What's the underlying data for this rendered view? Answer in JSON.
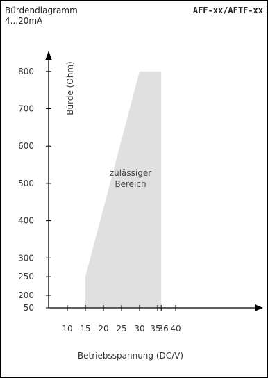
{
  "header": {
    "title": "Bürdendiagramm",
    "range": "4...20mA",
    "model": "AFF-xx/AFTF-xx"
  },
  "chart_data": {
    "type": "area",
    "ylabel": "Bürde (Ohm)",
    "xlabel": "Betriebsspannung (DC/V)",
    "x_ticks": [
      10,
      15,
      20,
      25,
      30,
      35,
      36,
      40
    ],
    "y_ticks": [
      50,
      200,
      250,
      300,
      400,
      500,
      600,
      700,
      800
    ],
    "region_label": [
      "zulässiger",
      "Bereich"
    ],
    "region": {
      "x": [
        15,
        15,
        30,
        36,
        36
      ],
      "y": [
        50,
        250,
        800,
        800,
        50
      ]
    },
    "colors": {
      "region": "#e0e0e0",
      "axis": "#000000"
    }
  }
}
